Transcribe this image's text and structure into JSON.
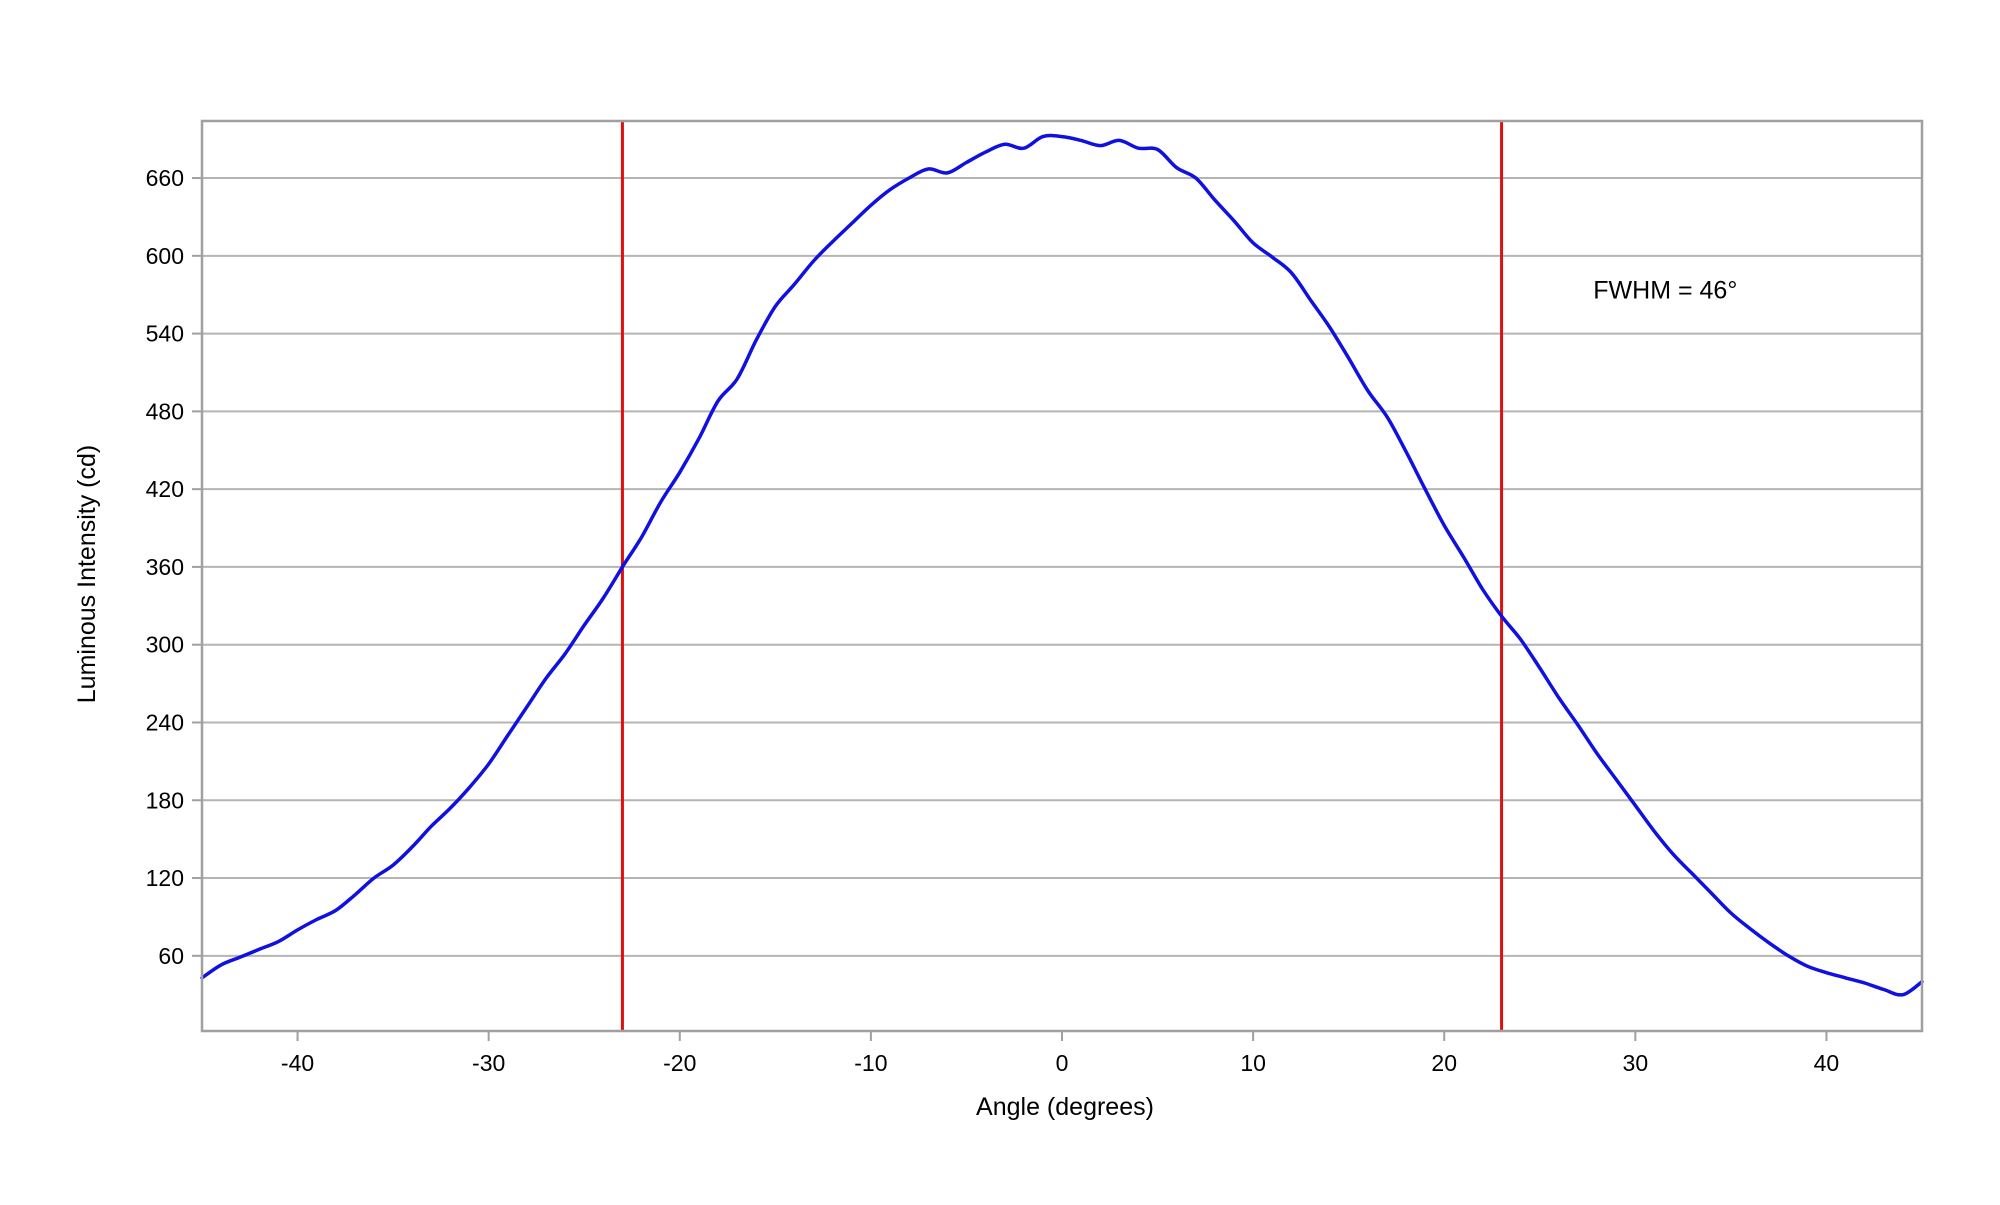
{
  "chart_data": {
    "type": "line",
    "title": "",
    "xlabel": "Angle (degrees)",
    "ylabel": "Luminous Intensity (cd)",
    "xlim": [
      -45,
      45
    ],
    "ylim": [
      2,
      704
    ],
    "xticks": [
      -40,
      -30,
      -20,
      -10,
      0,
      10,
      20,
      30,
      40
    ],
    "yticks": [
      60,
      120,
      180,
      240,
      300,
      360,
      420,
      480,
      540,
      600,
      660
    ],
    "grid": {
      "horizontal": true,
      "vertical": false
    },
    "legend": "none",
    "colors": {
      "series": "#1010e0",
      "markers": "#e01010",
      "grid": "#b4b4b4",
      "frame": "#a0a0a0"
    },
    "series": [
      {
        "values": [
          [
            -45,
            43
          ],
          [
            -44,
            53
          ],
          [
            -43,
            59
          ],
          [
            -42,
            65
          ],
          [
            -41,
            71
          ],
          [
            -40,
            80
          ],
          [
            -39,
            88
          ],
          [
            -38,
            95
          ],
          [
            -37,
            107
          ],
          [
            -36,
            120
          ],
          [
            -35,
            130
          ],
          [
            -34,
            144
          ],
          [
            -33,
            160
          ],
          [
            -32,
            174
          ],
          [
            -31,
            190
          ],
          [
            -30,
            208
          ],
          [
            -29,
            230
          ],
          [
            -28,
            252
          ],
          [
            -27,
            274
          ],
          [
            -26,
            293
          ],
          [
            -25,
            315
          ],
          [
            -24,
            336
          ],
          [
            -23,
            360
          ],
          [
            -22,
            383
          ],
          [
            -21,
            410
          ],
          [
            -20,
            433
          ],
          [
            -19,
            459
          ],
          [
            -18,
            488
          ],
          [
            -17,
            505
          ],
          [
            -16,
            535
          ],
          [
            -15,
            561
          ],
          [
            -14,
            578
          ],
          [
            -13,
            596
          ],
          [
            -12,
            611
          ],
          [
            -11,
            625
          ],
          [
            -10,
            639
          ],
          [
            -9,
            651
          ],
          [
            -8,
            660
          ],
          [
            -7,
            667
          ],
          [
            -6,
            664
          ],
          [
            -5,
            672
          ],
          [
            -4,
            680
          ],
          [
            -3,
            686
          ],
          [
            -2,
            683
          ],
          [
            -1,
            692
          ],
          [
            0,
            692
          ],
          [
            1,
            689
          ],
          [
            2,
            685
          ],
          [
            3,
            689
          ],
          [
            4,
            683
          ],
          [
            5,
            682
          ],
          [
            6,
            668
          ],
          [
            7,
            660
          ],
          [
            8,
            643
          ],
          [
            9,
            627
          ],
          [
            10,
            610
          ],
          [
            11,
            599
          ],
          [
            12,
            587
          ],
          [
            13,
            566
          ],
          [
            14,
            545
          ],
          [
            15,
            521
          ],
          [
            16,
            496
          ],
          [
            17,
            476
          ],
          [
            18,
            449
          ],
          [
            19,
            420
          ],
          [
            20,
            392
          ],
          [
            21,
            368
          ],
          [
            22,
            343
          ],
          [
            23,
            322
          ],
          [
            24,
            304
          ],
          [
            25,
            282
          ],
          [
            26,
            259
          ],
          [
            27,
            238
          ],
          [
            28,
            216
          ],
          [
            29,
            196
          ],
          [
            30,
            176
          ],
          [
            31,
            156
          ],
          [
            32,
            138
          ],
          [
            33,
            123
          ],
          [
            34,
            108
          ],
          [
            35,
            93
          ],
          [
            36,
            81
          ],
          [
            37,
            70
          ],
          [
            38,
            60
          ],
          [
            39,
            52
          ],
          [
            40,
            47
          ],
          [
            41,
            43
          ],
          [
            42,
            39
          ],
          [
            43,
            34
          ],
          [
            44,
            30
          ],
          [
            45,
            40
          ]
        ]
      }
    ],
    "markers": [
      -23,
      23
    ],
    "annotations": [
      {
        "text": "FWHM = 46°",
        "x": 27.8,
        "y": 567
      }
    ]
  }
}
